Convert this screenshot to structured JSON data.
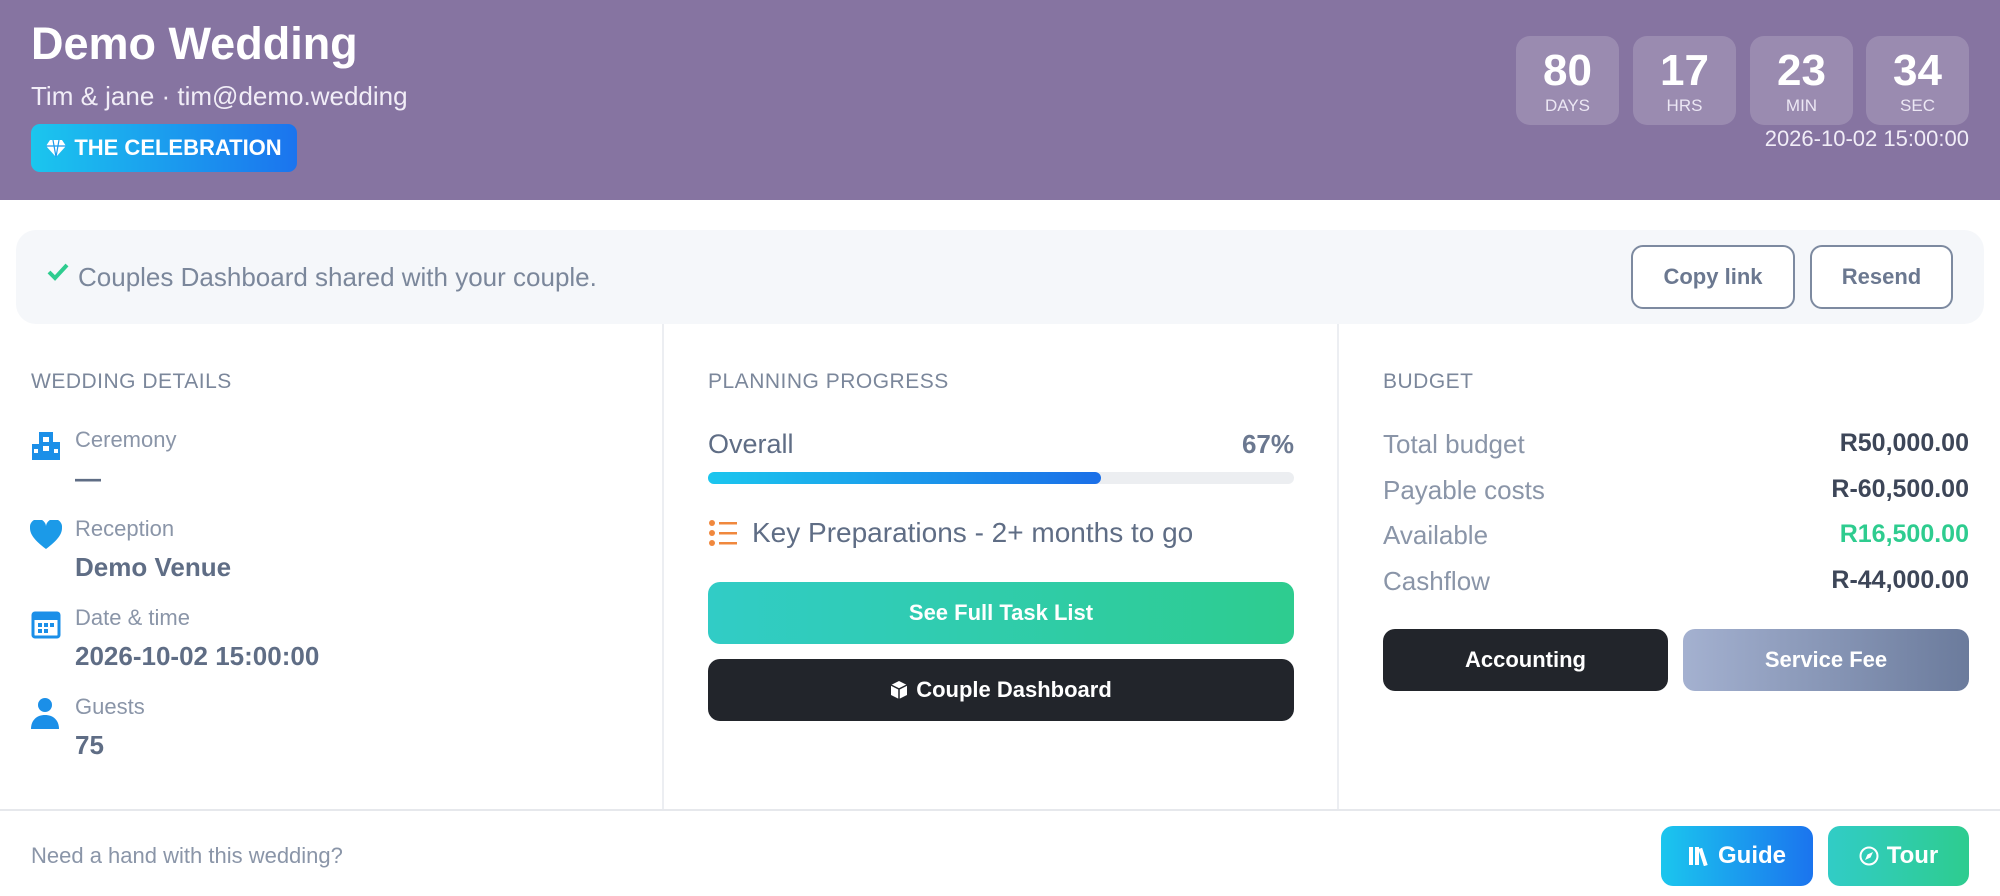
{
  "header": {
    "title": "Demo Wedding",
    "subtitle": "Tim & jane · tim@demo.wedding",
    "badge": "THE CELEBRATION",
    "countdown": [
      {
        "value": 80,
        "unit": "DAYS"
      },
      {
        "value": 17,
        "unit": "HRS"
      },
      {
        "value": 23,
        "unit": "MIN"
      },
      {
        "value": 34,
        "unit": "SEC"
      }
    ],
    "target": "2026-10-02 15:00:00"
  },
  "share_bar": {
    "message": "Couples Dashboard shared with your couple.",
    "buttons": [
      "Copy link",
      "Resend"
    ]
  },
  "wedding_details": {
    "heading": "WEDDING DETAILS",
    "items": [
      {
        "label": "Ceremony",
        "value": "—"
      },
      {
        "label": "Reception",
        "value": "Demo Venue"
      },
      {
        "label": "Date & time",
        "value": "2026-10-02 15:00:00"
      },
      {
        "label": "Guests",
        "value": "75"
      }
    ]
  },
  "planning_progress": {
    "heading": "PLANNING PROGRESS",
    "overall_label": "Overall",
    "overall_value": 67,
    "overall_value_label": "67%",
    "stage": "Key Preparations - 2+ months to go",
    "buttons": [
      "See Full Task List",
      "Couple Dashboard"
    ]
  },
  "budget": {
    "heading": "BUDGET",
    "rows": [
      {
        "label": "Total budget",
        "value": "R50,000.00"
      },
      {
        "label": "Payable costs",
        "value": "R-60,500.00"
      },
      {
        "label": "Available",
        "value": "R16,500.00"
      },
      {
        "label": "Cashflow",
        "value": "R-44,000.00"
      }
    ],
    "buttons": [
      "Accounting",
      "Service Fee"
    ]
  },
  "footer": {
    "text": "Need a hand with this wedding?",
    "buttons": [
      "Guide",
      "Tour"
    ]
  }
}
